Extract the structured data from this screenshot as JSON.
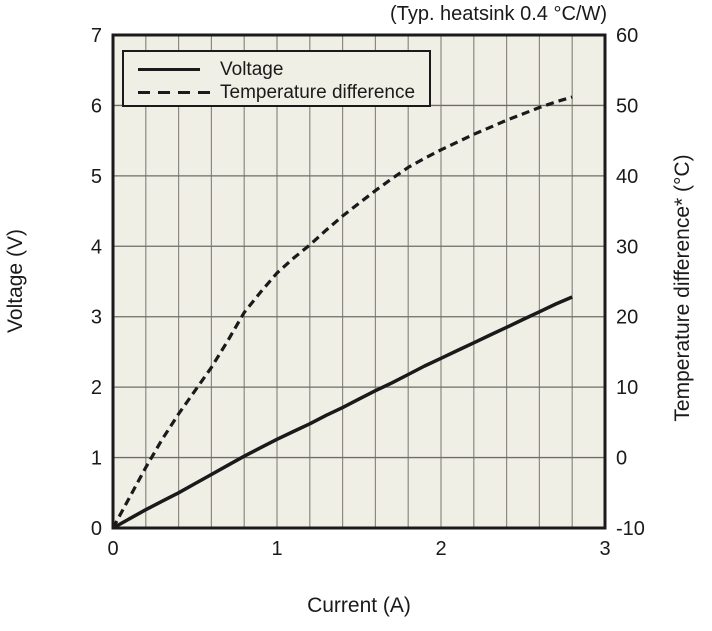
{
  "chart_data": {
    "type": "line",
    "annotation": "(Typ. heatsink 0.4 °C/W)",
    "xlabel": "Current (A)",
    "ylabel_left": "Voltage (V)",
    "ylabel_right": "Temperature difference* (°C)",
    "x_axis": {
      "min": 0,
      "max": 3,
      "major_ticks": [
        0,
        1,
        2,
        3
      ],
      "minor_grid_step": 0.2,
      "grid": true
    },
    "y_left_axis": {
      "min": 0,
      "max": 7,
      "ticks": [
        0,
        1,
        2,
        3,
        4,
        5,
        6,
        7
      ],
      "grid": true
    },
    "y_right_axis": {
      "min": -10,
      "max": 60,
      "ticks": [
        -10,
        0,
        10,
        20,
        30,
        40,
        50,
        60
      ]
    },
    "legend": {
      "position": "top-left",
      "entries": [
        "Voltage",
        "Temperature difference"
      ]
    },
    "series": [
      {
        "name": "Voltage",
        "axis": "left",
        "line_style": "solid",
        "points": [
          [
            0,
            0
          ],
          [
            0.1,
            0.13
          ],
          [
            0.2,
            0.26
          ],
          [
            0.3,
            0.38
          ],
          [
            0.4,
            0.5
          ],
          [
            0.5,
            0.63
          ],
          [
            0.6,
            0.76
          ],
          [
            0.7,
            0.89
          ],
          [
            0.8,
            1.02
          ],
          [
            0.9,
            1.14
          ],
          [
            1.0,
            1.26
          ],
          [
            1.1,
            1.37
          ],
          [
            1.2,
            1.48
          ],
          [
            1.3,
            1.6
          ],
          [
            1.4,
            1.71
          ],
          [
            1.5,
            1.83
          ],
          [
            1.6,
            1.95
          ],
          [
            1.7,
            2.06
          ],
          [
            1.8,
            2.18
          ],
          [
            1.9,
            2.3
          ],
          [
            2.0,
            2.41
          ],
          [
            2.1,
            2.52
          ],
          [
            2.2,
            2.63
          ],
          [
            2.3,
            2.74
          ],
          [
            2.4,
            2.85
          ],
          [
            2.5,
            2.96
          ],
          [
            2.6,
            3.07
          ],
          [
            2.7,
            3.18
          ],
          [
            2.8,
            3.28
          ]
        ]
      },
      {
        "name": "Temperature difference",
        "axis": "right",
        "line_style": "dashed",
        "points": [
          [
            0,
            -10
          ],
          [
            0.1,
            -5.7
          ],
          [
            0.2,
            -1.4
          ],
          [
            0.3,
            2.6
          ],
          [
            0.4,
            6.2
          ],
          [
            0.5,
            9.5
          ],
          [
            0.6,
            12.8
          ],
          [
            0.7,
            16.6
          ],
          [
            0.8,
            20.6
          ],
          [
            0.9,
            23.5
          ],
          [
            1.0,
            26.2
          ],
          [
            1.1,
            28.3
          ],
          [
            1.2,
            30.2
          ],
          [
            1.3,
            32.3
          ],
          [
            1.4,
            34.3
          ],
          [
            1.5,
            36.1
          ],
          [
            1.6,
            37.9
          ],
          [
            1.7,
            39.6
          ],
          [
            1.8,
            41.2
          ],
          [
            1.9,
            42.5
          ],
          [
            2.0,
            43.7
          ],
          [
            2.1,
            44.8
          ],
          [
            2.2,
            45.9
          ],
          [
            2.3,
            46.9
          ],
          [
            2.4,
            47.9
          ],
          [
            2.5,
            48.8
          ],
          [
            2.6,
            49.7
          ],
          [
            2.7,
            50.5
          ],
          [
            2.8,
            51.2
          ]
        ]
      }
    ],
    "colors": {
      "plot_background": "#f0efe6",
      "grid_vertical": "#8a8a80",
      "grid_horizontal": "#6e6e66",
      "frame": "#1a1a1a",
      "line": "#1a1a1a",
      "text": "#1a1a1a"
    }
  }
}
